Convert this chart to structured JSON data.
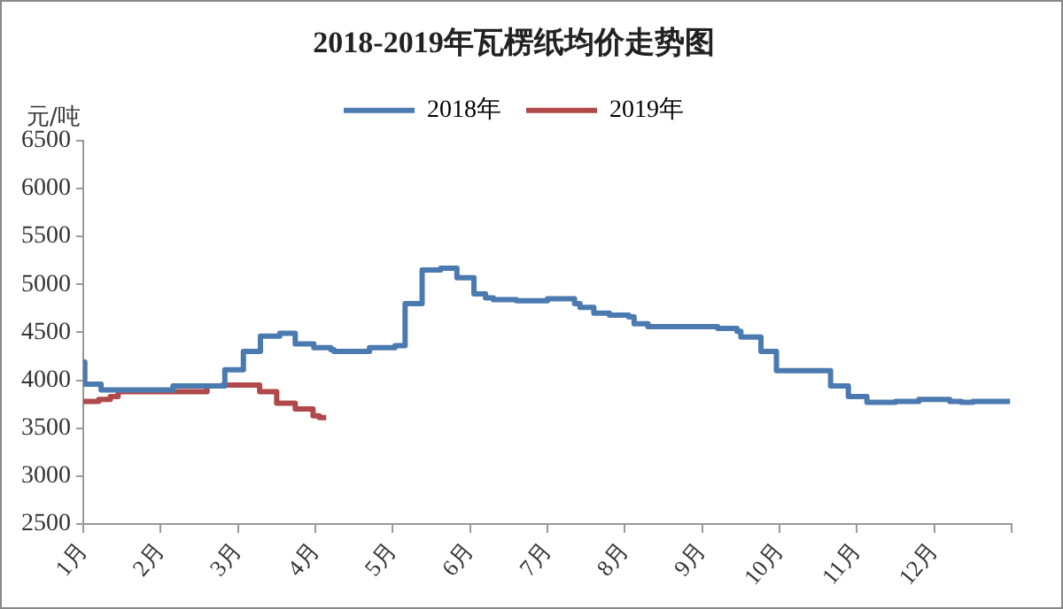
{
  "chart_data": {
    "type": "step",
    "title": "2018-2019年瓦楞纸均价走势图",
    "ylabel": "元/吨",
    "legend": "top",
    "marker": "none",
    "grid": false,
    "xlim": [
      1,
      13
    ],
    "xticks": [
      {
        "value": 1,
        "label": "1月"
      },
      {
        "value": 2,
        "label": "2月"
      },
      {
        "value": 3,
        "label": "3月"
      },
      {
        "value": 4,
        "label": "4月"
      },
      {
        "value": 5,
        "label": "5月"
      },
      {
        "value": 6,
        "label": "6月"
      },
      {
        "value": 7,
        "label": "7月"
      },
      {
        "value": 8,
        "label": "8月"
      },
      {
        "value": 9,
        "label": "9月"
      },
      {
        "value": 10,
        "label": "10月"
      },
      {
        "value": 11,
        "label": "11月"
      },
      {
        "value": 12,
        "label": "12月"
      },
      {
        "value": 13,
        "label": null
      }
    ],
    "ylim": [
      2500,
      6500
    ],
    "yticks": [
      2500,
      3000,
      3500,
      4000,
      4500,
      5000,
      5500,
      6000,
      6500
    ],
    "series": [
      {
        "name": "2018年",
        "color": "#4a7ab0",
        "x": [
          1.0,
          1.02,
          1.23,
          2.16,
          2.83,
          3.07,
          3.29,
          3.54,
          3.74,
          3.98,
          4.2,
          4.24,
          4.7,
          5.03,
          5.16,
          5.38,
          5.62,
          5.83,
          6.05,
          6.2,
          6.3,
          6.6,
          7.0,
          7.35,
          7.42,
          7.6,
          7.8,
          8.05,
          8.12,
          8.3,
          9.2,
          9.45,
          9.5,
          9.76,
          9.96,
          10.66,
          10.89,
          11.13,
          11.5,
          11.8,
          12.2,
          12.35,
          12.5,
          12.98
        ],
        "values": [
          4190,
          3960,
          3900,
          3940,
          4110,
          4300,
          4460,
          4490,
          4380,
          4340,
          4320,
          4300,
          4340,
          4360,
          4800,
          5150,
          5170,
          5070,
          4900,
          4860,
          4840,
          4830,
          4850,
          4800,
          4760,
          4700,
          4680,
          4660,
          4590,
          4560,
          4540,
          4510,
          4450,
          4300,
          4100,
          3940,
          3830,
          3770,
          3780,
          3800,
          3780,
          3770,
          3780,
          3780
        ]
      },
      {
        "name": "2019年",
        "color": "#b04a4a",
        "x": [
          1.0,
          1.2,
          1.35,
          1.45,
          2.6,
          2.8,
          3.28,
          3.5,
          3.74,
          3.97,
          4.05,
          4.14
        ],
        "values": [
          3780,
          3800,
          3830,
          3880,
          3940,
          3950,
          3880,
          3760,
          3700,
          3630,
          3610,
          3610
        ]
      }
    ]
  }
}
